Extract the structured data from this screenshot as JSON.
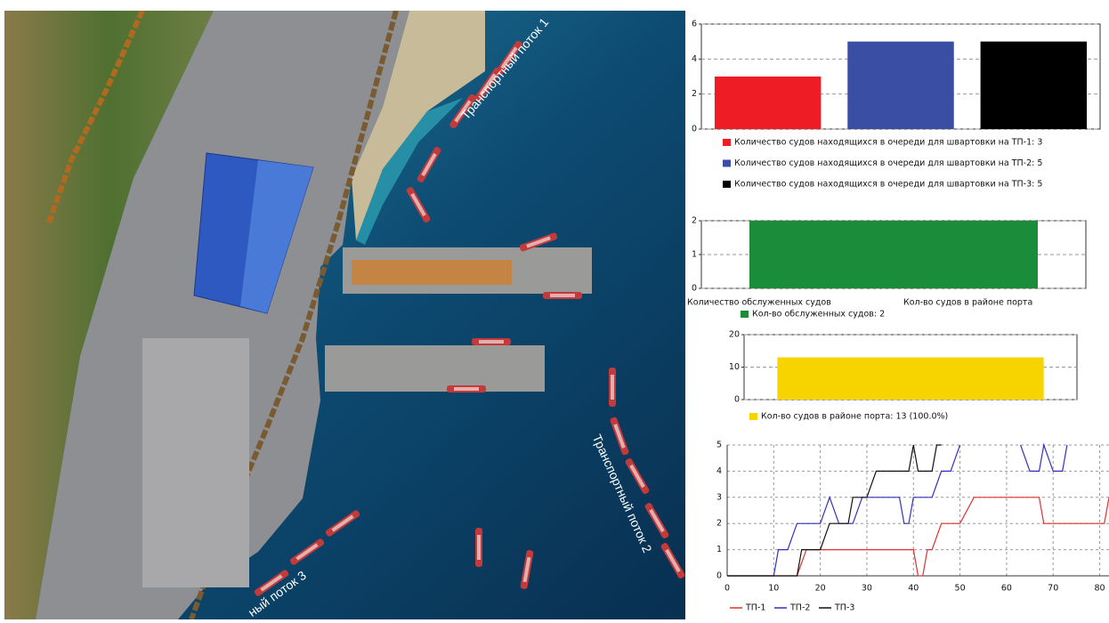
{
  "map": {
    "labels": [
      "Транспортный поток 1",
      "Транспортный поток 2",
      "ный поток 3"
    ]
  },
  "chart_data": [
    {
      "type": "bar",
      "ylim": [
        0,
        6
      ],
      "yticks": [
        0,
        2,
        4,
        6
      ],
      "grid": true,
      "series": [
        {
          "name": "Количество судов  находящихся в очереди для швартовки на ТП-1: 3",
          "color": "#ee1c24",
          "values": [
            3
          ]
        },
        {
          "name": "Количество судов  находящихся в очереди для швартовки на ТП-2: 5",
          "color": "#3a4ea3",
          "values": [
            5
          ]
        },
        {
          "name": "Количество судов  находящихся в очереди для швартовки на ТП-3: 5",
          "color": "#000000",
          "values": [
            5
          ]
        }
      ]
    },
    {
      "type": "bar",
      "ylim": [
        0,
        2
      ],
      "yticks": [
        0,
        1,
        2
      ],
      "grid": true,
      "axis_labels": [
        "Количество обслуженных судов",
        "Кол-во судов в районе порта"
      ],
      "series": [
        {
          "name": "Кол-во обслуженных судов: 2",
          "color": "#1a8c3a",
          "values": [
            2
          ]
        }
      ]
    },
    {
      "type": "bar",
      "ylim": [
        0,
        20
      ],
      "yticks": [
        0,
        10,
        20
      ],
      "grid": true,
      "series": [
        {
          "name": "Кол-во судов в районе порта: 13 (100.0%)",
          "color": "#f7d300",
          "values": [
            13
          ]
        }
      ]
    },
    {
      "type": "line",
      "xlim": [
        0,
        82
      ],
      "ylim": [
        0,
        5
      ],
      "xticks": [
        0,
        10,
        20,
        30,
        40,
        50,
        60,
        70,
        80
      ],
      "yticks": [
        0,
        1,
        2,
        3,
        4,
        5
      ],
      "grid": true,
      "series": [
        {
          "name": "ТП-1",
          "color": "#e03030",
          "x": [
            0,
            15,
            17,
            40,
            41,
            42,
            43,
            44,
            46,
            50,
            53,
            67,
            68,
            81,
            82
          ],
          "values": [
            0,
            0,
            1,
            1,
            0,
            0,
            1,
            1,
            2,
            2,
            3,
            3,
            2,
            2,
            3
          ]
        },
        {
          "name": "ТП-2",
          "color": "#3030c0",
          "x": [
            0,
            10,
            11,
            13,
            15,
            20,
            22,
            24,
            27,
            29,
            37,
            38,
            39,
            40,
            44,
            46,
            48,
            50,
            56,
            63,
            65,
            67,
            68,
            70,
            72,
            73
          ],
          "values": [
            0,
            0,
            1,
            1,
            2,
            2,
            3,
            2,
            2,
            3,
            3,
            2,
            2,
            3,
            3,
            4,
            4,
            5,
            null,
            5,
            4,
            4,
            5,
            4,
            4,
            5
          ]
        },
        {
          "name": "ТП-3",
          "color": "#111111",
          "x": [
            0,
            15,
            16,
            20,
            22,
            26,
            27,
            30,
            32,
            39,
            40,
            41,
            44,
            45,
            46
          ],
          "values": [
            0,
            0,
            1,
            1,
            2,
            2,
            3,
            3,
            4,
            4,
            5,
            4,
            4,
            5,
            5
          ]
        }
      ]
    }
  ]
}
